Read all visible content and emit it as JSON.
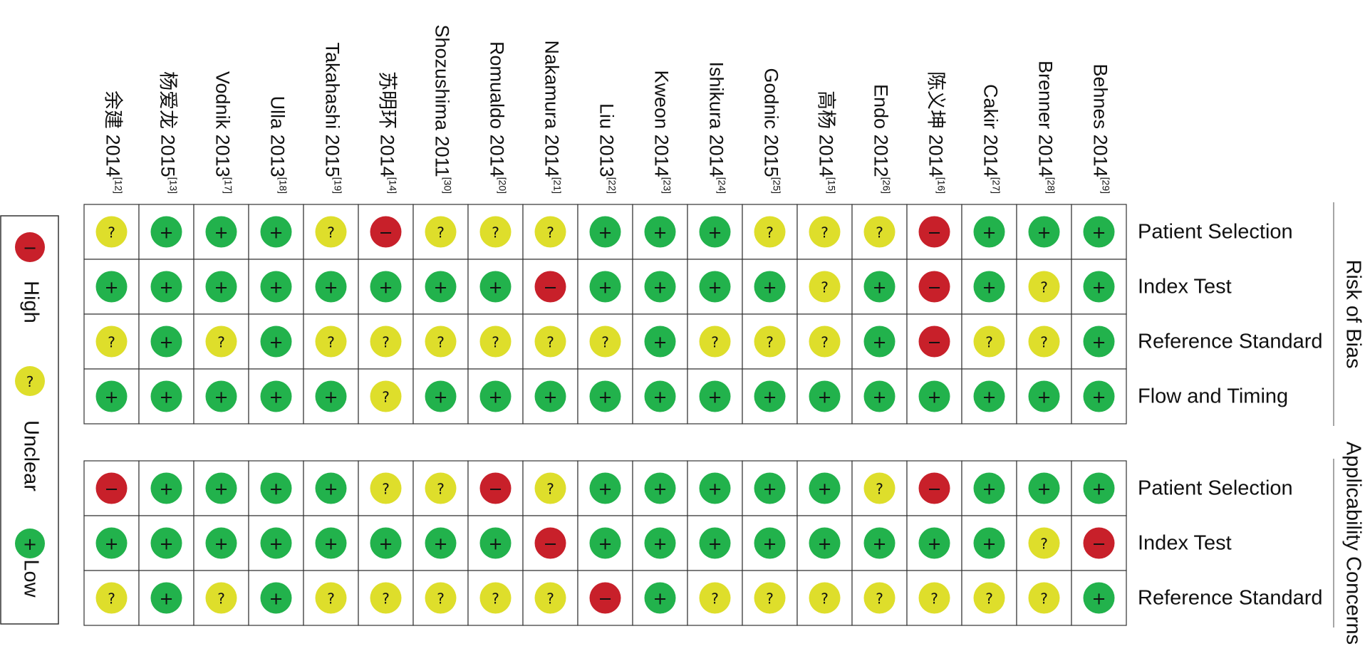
{
  "chart_data": {
    "type": "table",
    "studies": [
      {
        "name": "余建 2014",
        "ref": "[12]"
      },
      {
        "name": "杨爱龙 2015",
        "ref": "[13]"
      },
      {
        "name": "Vodnik 2013",
        "ref": "[17]"
      },
      {
        "name": "Ulla 2013",
        "ref": "[18]"
      },
      {
        "name": "Takahashi 2015",
        "ref": "[19]"
      },
      {
        "name": "苏明环 2014",
        "ref": "[14]"
      },
      {
        "name": "Shozushima 2011",
        "ref": "[30]"
      },
      {
        "name": "Romualdo 2014",
        "ref": "[20]"
      },
      {
        "name": "Nakamura 2014",
        "ref": "[21]"
      },
      {
        "name": "Liu 2013",
        "ref": "[22]"
      },
      {
        "name": "Kweon 2014",
        "ref": "[23]"
      },
      {
        "name": "Ishikura 2014",
        "ref": "[24]"
      },
      {
        "name": "Godnic 2015",
        "ref": "[25]"
      },
      {
        "name": "高杨 2014",
        "ref": "[15]"
      },
      {
        "name": "Endo 2012",
        "ref": "[26]"
      },
      {
        "name": "陈义坤 2014",
        "ref": "[16]"
      },
      {
        "name": "Cakir 2014",
        "ref": "[27]"
      },
      {
        "name": "Brenner 2014",
        "ref": "[28]"
      },
      {
        "name": "Behnes 2014",
        "ref": "[29]"
      }
    ],
    "groups": [
      {
        "label": "Risk of Bias",
        "domains": [
          {
            "label": "Patient Selection",
            "ratings": [
              "U",
              "L",
              "L",
              "L",
              "U",
              "H",
              "U",
              "U",
              "U",
              "L",
              "L",
              "L",
              "U",
              "U",
              "U",
              "H",
              "L",
              "L",
              "L"
            ]
          },
          {
            "label": "Index Test",
            "ratings": [
              "L",
              "L",
              "L",
              "L",
              "L",
              "L",
              "L",
              "L",
              "H",
              "L",
              "L",
              "L",
              "L",
              "U",
              "L",
              "H",
              "L",
              "U",
              "L"
            ]
          },
          {
            "label": "Reference Standard",
            "ratings": [
              "U",
              "L",
              "U",
              "L",
              "U",
              "U",
              "U",
              "U",
              "U",
              "U",
              "L",
              "U",
              "U",
              "U",
              "L",
              "H",
              "U",
              "U",
              "L"
            ]
          },
          {
            "label": "Flow and Timing",
            "ratings": [
              "L",
              "L",
              "L",
              "L",
              "L",
              "U",
              "L",
              "L",
              "L",
              "L",
              "L",
              "L",
              "L",
              "L",
              "L",
              "L",
              "L",
              "L",
              "L"
            ]
          }
        ]
      },
      {
        "label": "Applicability Concerns",
        "domains": [
          {
            "label": "Patient Selection",
            "ratings": [
              "H",
              "L",
              "L",
              "L",
              "L",
              "U",
              "U",
              "H",
              "U",
              "L",
              "L",
              "L",
              "L",
              "L",
              "U",
              "H",
              "L",
              "L",
              "L"
            ]
          },
          {
            "label": "Index Test",
            "ratings": [
              "L",
              "L",
              "L",
              "L",
              "L",
              "L",
              "L",
              "L",
              "H",
              "L",
              "L",
              "L",
              "L",
              "L",
              "L",
              "L",
              "L",
              "U",
              "H"
            ]
          },
          {
            "label": "Reference Standard",
            "ratings": [
              "U",
              "L",
              "U",
              "L",
              "U",
              "U",
              "U",
              "U",
              "U",
              "H",
              "L",
              "U",
              "U",
              "U",
              "U",
              "U",
              "U",
              "U",
              "L"
            ]
          }
        ]
      }
    ],
    "legend": [
      {
        "key": "H",
        "label": "High",
        "symbol": "−",
        "color": "#c8202a"
      },
      {
        "key": "U",
        "label": "Unclear",
        "symbol": "?",
        "color": "#dede2b"
      },
      {
        "key": "L",
        "label": "Low",
        "symbol": "+",
        "color": "#22b24c"
      }
    ]
  }
}
